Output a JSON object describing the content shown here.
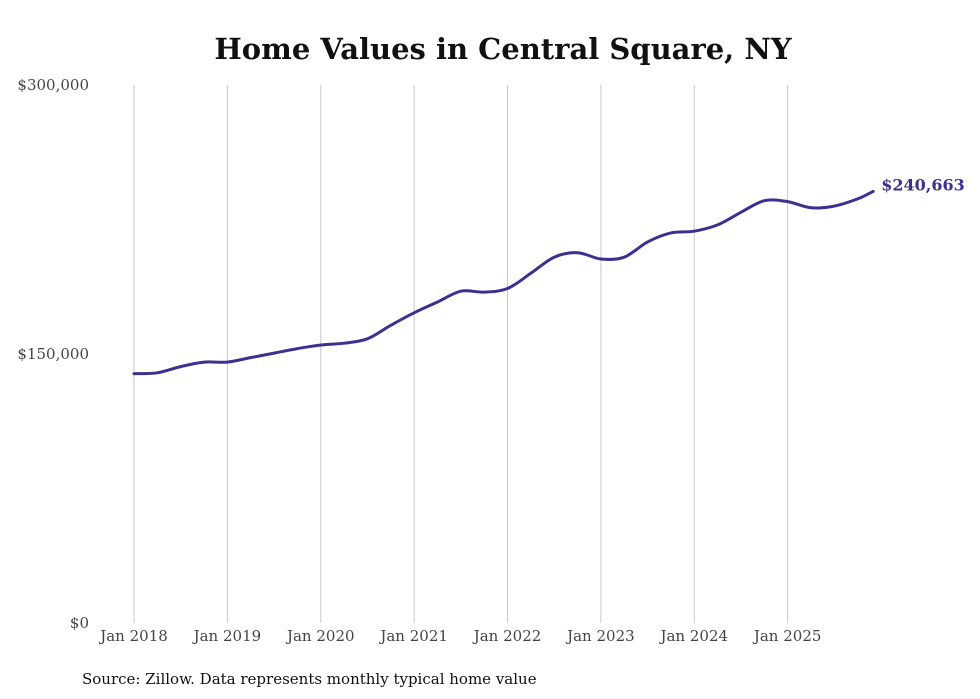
{
  "chart_data": {
    "type": "line",
    "title": "Home Values in Central Square, NY",
    "source": "Source: Zillow. Data represents monthly typical home value",
    "xlabel": "",
    "ylabel": "",
    "y_ticks": [
      {
        "value": 0,
        "label": "$0"
      },
      {
        "value": 150000,
        "label": "$150,000"
      },
      {
        "value": 300000,
        "label": "$300,000"
      }
    ],
    "x_ticks": [
      {
        "value": 2018.0,
        "label": "Jan 2018"
      },
      {
        "value": 2019.0,
        "label": "Jan 2019"
      },
      {
        "value": 2020.0,
        "label": "Jan 2020"
      },
      {
        "value": 2021.0,
        "label": "Jan 2021"
      },
      {
        "value": 2022.0,
        "label": "Jan 2022"
      },
      {
        "value": 2023.0,
        "label": "Jan 2023"
      },
      {
        "value": 2024.0,
        "label": "Jan 2024"
      },
      {
        "value": 2025.0,
        "label": "Jan 2025"
      }
    ],
    "xlim": [
      2018.0,
      2026.0
    ],
    "ylim": [
      0,
      300000
    ],
    "grid": "vertical",
    "line_color": "#3a3191",
    "end_label": "$240,663",
    "series": [
      {
        "name": "Typical home value",
        "x": [
          2018.0,
          2018.25,
          2018.5,
          2018.75,
          2019.0,
          2019.25,
          2019.5,
          2019.75,
          2020.0,
          2020.25,
          2020.5,
          2020.75,
          2021.0,
          2021.25,
          2021.5,
          2021.75,
          2022.0,
          2022.25,
          2022.5,
          2022.75,
          2023.0,
          2023.25,
          2023.5,
          2023.75,
          2024.0,
          2024.25,
          2024.5,
          2024.75,
          2025.0,
          2025.25,
          2025.5,
          2025.75,
          2025.917
        ],
        "values": [
          139000,
          139500,
          143000,
          145500,
          145500,
          148000,
          150500,
          153000,
          155000,
          156000,
          158500,
          166000,
          173000,
          179000,
          185000,
          184500,
          186500,
          195000,
          204000,
          206500,
          203000,
          204000,
          212500,
          217500,
          218500,
          222000,
          229000,
          235500,
          235000,
          231500,
          232500,
          236500,
          240663
        ]
      }
    ]
  }
}
